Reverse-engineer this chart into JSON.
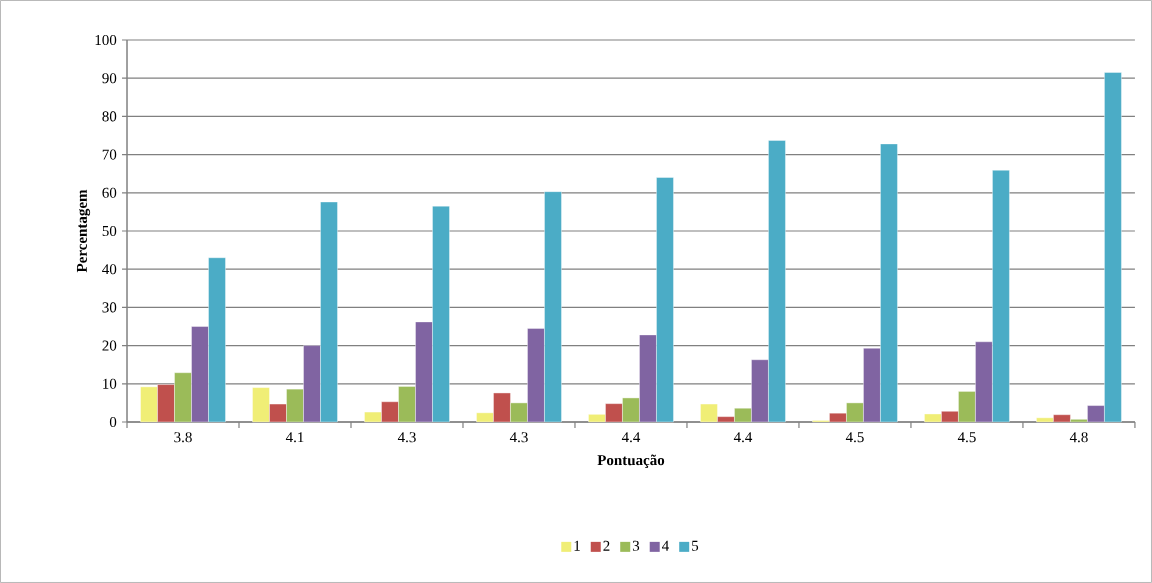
{
  "chart_data": {
    "type": "bar",
    "xlabel": "Pontuação",
    "ylabel": "Percentagem",
    "categories": [
      "3.8",
      "4.1",
      "4.3",
      "4.3",
      "4.4",
      "4.4",
      "4.5",
      "4.5",
      "4.8"
    ],
    "series": [
      {
        "name": "1",
        "color": "#f0ee76",
        "values": [
          9.2,
          9.0,
          2.6,
          2.4,
          2.0,
          4.7,
          0.4,
          2.1,
          1.1
        ]
      },
      {
        "name": "2",
        "color": "#c0504d",
        "values": [
          9.8,
          4.7,
          5.3,
          7.6,
          4.8,
          1.4,
          2.3,
          2.8,
          1.9
        ]
      },
      {
        "name": "3",
        "color": "#9bbb59",
        "values": [
          12.9,
          8.6,
          9.3,
          5.0,
          6.3,
          3.6,
          5.0,
          8.0,
          0.7
        ]
      },
      {
        "name": "4",
        "color": "#8064a2",
        "values": [
          25.0,
          20.0,
          26.2,
          24.5,
          22.8,
          16.3,
          19.3,
          21.0,
          4.3
        ]
      },
      {
        "name": "5",
        "color": "#4bacc6",
        "values": [
          43.0,
          57.6,
          56.5,
          60.3,
          64.0,
          73.7,
          72.8,
          65.9,
          91.5
        ]
      }
    ],
    "ylim": [
      0,
      100
    ],
    "yticks": [
      0,
      10,
      20,
      30,
      40,
      50,
      60,
      70,
      80,
      90,
      100
    ],
    "grid": "y",
    "legend": "bottom"
  }
}
